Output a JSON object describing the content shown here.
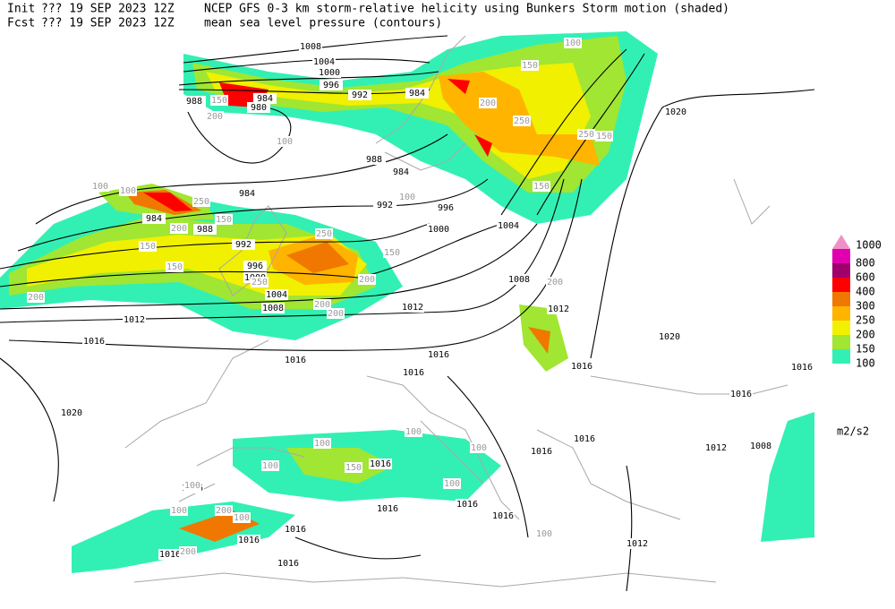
{
  "header": {
    "init_label": "Init",
    "init_time": "??? 19 SEP 2023 12Z",
    "fcst_label": "Fcst",
    "fcst_time": "??? 19 SEP 2023 12Z",
    "title": "NCEP GFS 0-3 km storm-relative helicity using Bunkers Storm motion (shaded)",
    "subtitle": "mean sea level pressure (contours)"
  },
  "legend": {
    "levels": [
      {
        "label": "1000",
        "color": "#f090c8"
      },
      {
        "label": "800",
        "color": "#e000b0"
      },
      {
        "label": "600",
        "color": "#a0006c"
      },
      {
        "label": "400",
        "color": "#ff0000"
      },
      {
        "label": "300",
        "color": "#f07800"
      },
      {
        "label": "250",
        "color": "#ffb400"
      },
      {
        "label": "200",
        "color": "#f0f000"
      },
      {
        "label": "150",
        "color": "#a0e632"
      },
      {
        "label": "100",
        "color": "#32f0b4"
      }
    ],
    "units": "m2/s2"
  },
  "isobar_labels": [
    "1008",
    "1004",
    "1000",
    "996",
    "992",
    "988",
    "984",
    "980",
    "984",
    "988",
    "984",
    "984",
    "984",
    "988",
    "992",
    "996",
    "1000",
    "1004",
    "1008",
    "992",
    "996",
    "1000",
    "1004",
    "1008",
    "1012",
    "1012",
    "1012",
    "1016",
    "1016",
    "1016",
    "1016",
    "1016",
    "1016",
    "1016",
    "1020",
    "1020",
    "1020",
    "1012",
    "1008",
    "1016",
    "1016",
    "1016",
    "1016",
    "1016",
    "1016",
    "1016",
    "1016",
    "1016",
    "1016",
    "1016",
    "1012"
  ],
  "helicity_labels": [
    "200",
    "150",
    "250",
    "200",
    "150",
    "100",
    "250",
    "150",
    "200",
    "250",
    "150",
    "150",
    "200",
    "250",
    "100",
    "200",
    "250",
    "150",
    "150",
    "100",
    "200",
    "150",
    "200",
    "100",
    "100",
    "100",
    "100",
    "150",
    "100",
    "100",
    "100",
    "200",
    "100",
    "200",
    "100",
    "200",
    "100",
    "100"
  ]
}
